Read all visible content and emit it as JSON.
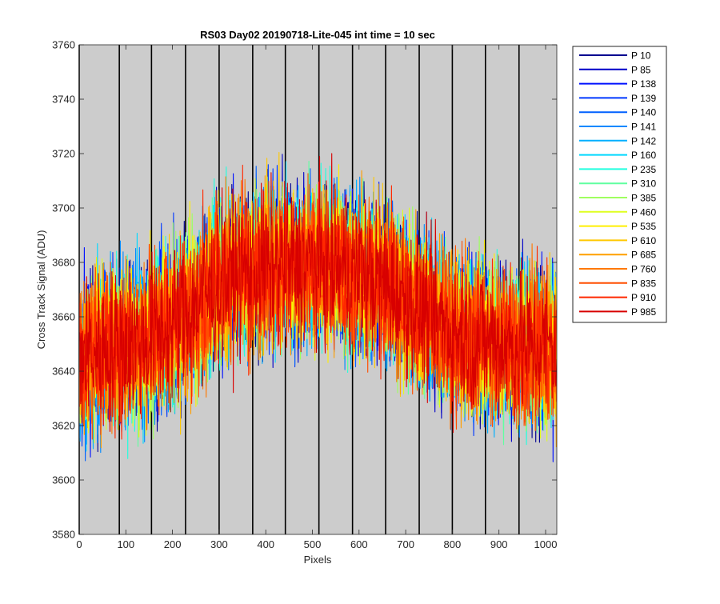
{
  "chart_data": {
    "type": "line",
    "title": "RS03 Day02 20190718-Lite-045 int time = 10 sec",
    "xlabel": "Pixels",
    "ylabel": "Cross Track Signal (ADU)",
    "xlim": [
      0,
      1024
    ],
    "ylim": [
      3580,
      3760
    ],
    "xticks": [
      0,
      100,
      200,
      300,
      400,
      500,
      600,
      700,
      800,
      900,
      1000
    ],
    "yticks": [
      3580,
      3600,
      3620,
      3640,
      3660,
      3680,
      3700,
      3720,
      3740,
      3760
    ],
    "plot_background": "#cccccc",
    "grid": false,
    "legend_position": "outside-right-top",
    "vertical_lines_x": [
      0,
      86,
      155,
      228,
      300,
      372,
      442,
      514,
      586,
      657,
      729,
      800,
      871,
      943
    ],
    "profile": {
      "x": [
        0,
        50,
        100,
        150,
        200,
        250,
        300,
        350,
        400,
        450,
        500,
        550,
        600,
        650,
        700,
        750,
        800,
        850,
        900,
        950,
        1024
      ],
      "y": [
        3645,
        3648,
        3650,
        3652,
        3656,
        3665,
        3672,
        3676,
        3678,
        3679,
        3679,
        3678,
        3676,
        3672,
        3667,
        3660,
        3655,
        3652,
        3650,
        3649,
        3649
      ]
    },
    "noise_amplitude_adu": 14,
    "samples_per_series": 1024,
    "series": [
      {
        "name": "P 10",
        "color": "#00008f"
      },
      {
        "name": "P 85",
        "color": "#0000c8"
      },
      {
        "name": "P 138",
        "color": "#0010ff"
      },
      {
        "name": "P 139",
        "color": "#0038ff"
      },
      {
        "name": "P 140",
        "color": "#0060ff"
      },
      {
        "name": "P 141",
        "color": "#0088ff"
      },
      {
        "name": "P 142",
        "color": "#00b0ff"
      },
      {
        "name": "P 160",
        "color": "#00d8ff"
      },
      {
        "name": "P 235",
        "color": "#20ffdf"
      },
      {
        "name": "P 310",
        "color": "#60ffa0"
      },
      {
        "name": "P 385",
        "color": "#9fff60"
      },
      {
        "name": "P 460",
        "color": "#dfff20"
      },
      {
        "name": "P 535",
        "color": "#ffef00"
      },
      {
        "name": "P 610",
        "color": "#ffc800"
      },
      {
        "name": "P 685",
        "color": "#ff9f00"
      },
      {
        "name": "P 760",
        "color": "#ff7800"
      },
      {
        "name": "P 835",
        "color": "#ff4f00"
      },
      {
        "name": "P 910",
        "color": "#ff2800"
      },
      {
        "name": "P 985",
        "color": "#d80000"
      }
    ]
  }
}
